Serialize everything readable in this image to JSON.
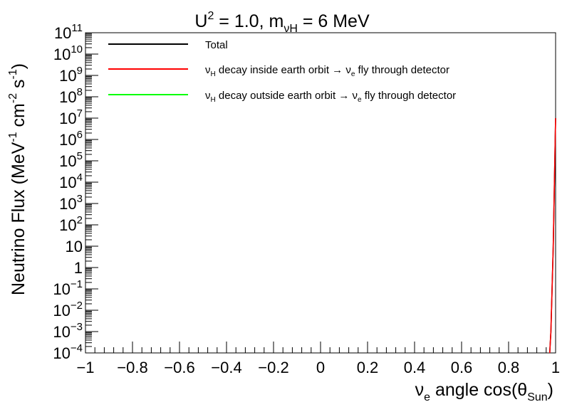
{
  "chart_data": {
    "type": "line",
    "title": {
      "base": "U",
      "sup": "2",
      "mid": " = 1.0, m",
      "sub": "νH",
      "tail": " = 6 MeV"
    },
    "xlabel": {
      "pre": "ν",
      "sub1": "e",
      "mid": " angle cos(θ",
      "sub2": "Sun",
      "post": ")"
    },
    "ylabel": {
      "a": "Neutrino Flux (MeV",
      "s1": "-1",
      "b": " cm",
      "s2": "-2",
      "c": " s",
      "s3": "-1",
      "d": ")"
    },
    "xlim": [
      -1,
      1
    ],
    "ylim": [
      0.0001,
      100000000000
    ],
    "y_scale": "log",
    "x_ticks": [
      {
        "v": -1,
        "label": "−1"
      },
      {
        "v": -0.8,
        "label": "−0.8"
      },
      {
        "v": -0.6,
        "label": "−0.6"
      },
      {
        "v": -0.4,
        "label": "−0.4"
      },
      {
        "v": -0.2,
        "label": "−0.2"
      },
      {
        "v": 0,
        "label": "0"
      },
      {
        "v": 0.2,
        "label": "0.2"
      },
      {
        "v": 0.4,
        "label": "0.4"
      },
      {
        "v": 0.6,
        "label": "0.6"
      },
      {
        "v": 0.8,
        "label": "0.8"
      },
      {
        "v": 1,
        "label": "1"
      }
    ],
    "y_ticks": [
      {
        "e": -4,
        "base": "10",
        "exp": "−4"
      },
      {
        "e": -3,
        "base": "10",
        "exp": "−3"
      },
      {
        "e": -2,
        "base": "10",
        "exp": "−2"
      },
      {
        "e": -1,
        "base": "10",
        "exp": "−1"
      },
      {
        "e": 0,
        "base": "1",
        "exp": ""
      },
      {
        "e": 1,
        "base": "10",
        "exp": ""
      },
      {
        "e": 2,
        "base": "10",
        "exp": "2"
      },
      {
        "e": 3,
        "base": "10",
        "exp": "3"
      },
      {
        "e": 4,
        "base": "10",
        "exp": "4"
      },
      {
        "e": 5,
        "base": "10",
        "exp": "5"
      },
      {
        "e": 6,
        "base": "10",
        "exp": "6"
      },
      {
        "e": 7,
        "base": "10",
        "exp": "7"
      },
      {
        "e": 8,
        "base": "10",
        "exp": "8"
      },
      {
        "e": 9,
        "base": "10",
        "exp": "9"
      },
      {
        "e": 10,
        "base": "10",
        "exp": "10"
      },
      {
        "e": 11,
        "base": "10",
        "exp": "11"
      }
    ],
    "legend_position": "top",
    "legend": [
      {
        "color": "#000000",
        "parts": [
          {
            "t": "Total"
          }
        ]
      },
      {
        "color": "#ff0000",
        "parts": [
          {
            "t": "ν"
          },
          {
            "t": "H",
            "sub": true
          },
          {
            "t": " decay inside earth orbit → ν"
          },
          {
            "t": "e",
            "sub": true
          },
          {
            "t": " fly through detector"
          }
        ]
      },
      {
        "color": "#00ff00",
        "parts": [
          {
            "t": "ν"
          },
          {
            "t": "H",
            "sub": true
          },
          {
            "t": " decay outside earth orbit → ν"
          },
          {
            "t": "e",
            "sub": true
          },
          {
            "t": " fly through detector"
          }
        ]
      }
    ],
    "series": [
      {
        "name": "Total",
        "color": "#000000",
        "x": [
          0.975,
          0.98,
          0.985,
          0.99,
          0.995,
          1.0
        ],
        "y": [
          0.0001,
          0.001,
          0.1,
          10,
          10000,
          10000000
        ]
      },
      {
        "name": "νH decay inside earth orbit → νe fly through detector",
        "color": "#ff0000",
        "x": [
          0.975,
          0.98,
          0.985,
          0.99,
          0.995,
          1.0
        ],
        "y": [
          0.0001,
          0.001,
          0.1,
          10,
          10000,
          10000000
        ]
      },
      {
        "name": "νH decay outside earth orbit → νe fly through detector",
        "color": "#00ff00",
        "x": [],
        "y": []
      }
    ]
  }
}
